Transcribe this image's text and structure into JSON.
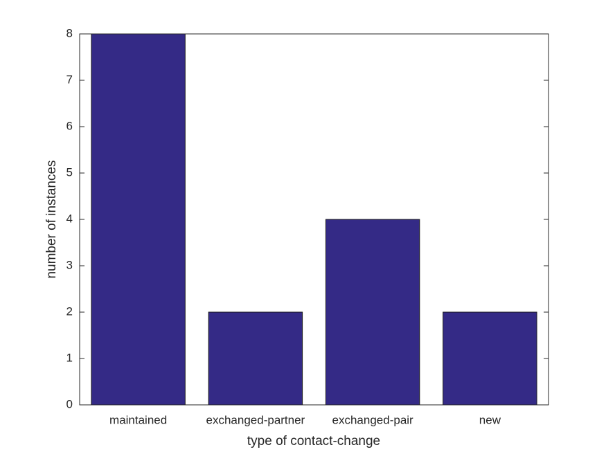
{
  "chart_data": {
    "type": "bar",
    "xlabel": "type of contact-change",
    "ylabel": "number of instances",
    "categories": [
      "maintained",
      "exchanged-partner",
      "exchanged-pair",
      "new"
    ],
    "values": [
      8,
      2,
      4,
      2
    ],
    "color": "#342a86",
    "ylim": [
      0,
      8
    ],
    "yticks": [
      0,
      1,
      2,
      3,
      4,
      5,
      6,
      7,
      8
    ],
    "grid": false
  }
}
